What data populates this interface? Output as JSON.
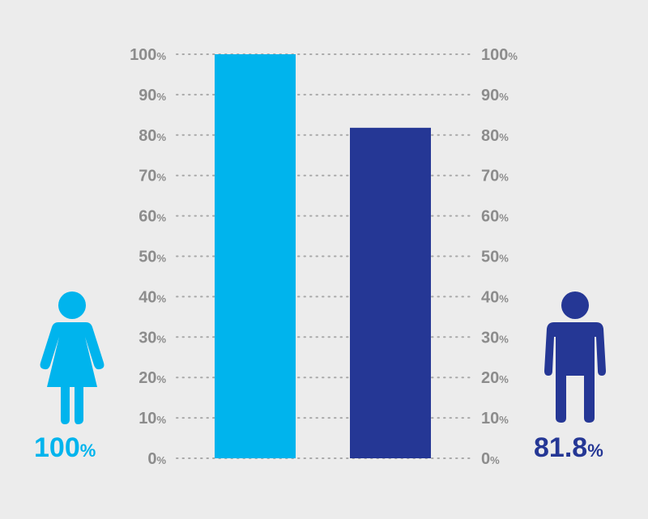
{
  "chart_data": {
    "type": "bar",
    "categories": [
      "female",
      "male"
    ],
    "values": [
      100,
      81.8
    ],
    "ylim": [
      0,
      100
    ],
    "yticks": [
      0,
      10,
      20,
      30,
      40,
      50,
      60,
      70,
      80,
      90,
      100
    ],
    "tick_suffix": "%",
    "grid": true,
    "colors": {
      "female": "#00b4ed",
      "male": "#253795",
      "tick": "#8c8c8c",
      "background": "#ececec"
    }
  },
  "labels": {
    "female": {
      "number": "100",
      "unit": "%"
    },
    "male": {
      "number": "81.8",
      "unit": "%"
    }
  },
  "icons": {
    "female": "woman-figure-icon",
    "male": "man-figure-icon"
  }
}
